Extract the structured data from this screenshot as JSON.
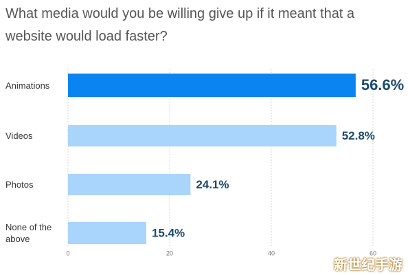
{
  "chart_data": {
    "type": "bar",
    "orientation": "horizontal",
    "title": "What media would you be willing give up if it meant that a website would load faster?",
    "categories": [
      "Animations",
      "Videos",
      "Photos",
      "None of the above"
    ],
    "values": [
      56.6,
      52.8,
      24.1,
      15.4
    ],
    "value_labels": [
      "56.6%",
      "52.8%",
      "24.1%",
      "15.4%"
    ],
    "colors": [
      "#0a84f0",
      "#a9d4fb",
      "#a9d4fb",
      "#a9d4fb"
    ],
    "xlim": [
      0,
      65
    ],
    "xticks": [
      0,
      20,
      40,
      60
    ],
    "grid": true
  },
  "watermark": "新世纪手游"
}
